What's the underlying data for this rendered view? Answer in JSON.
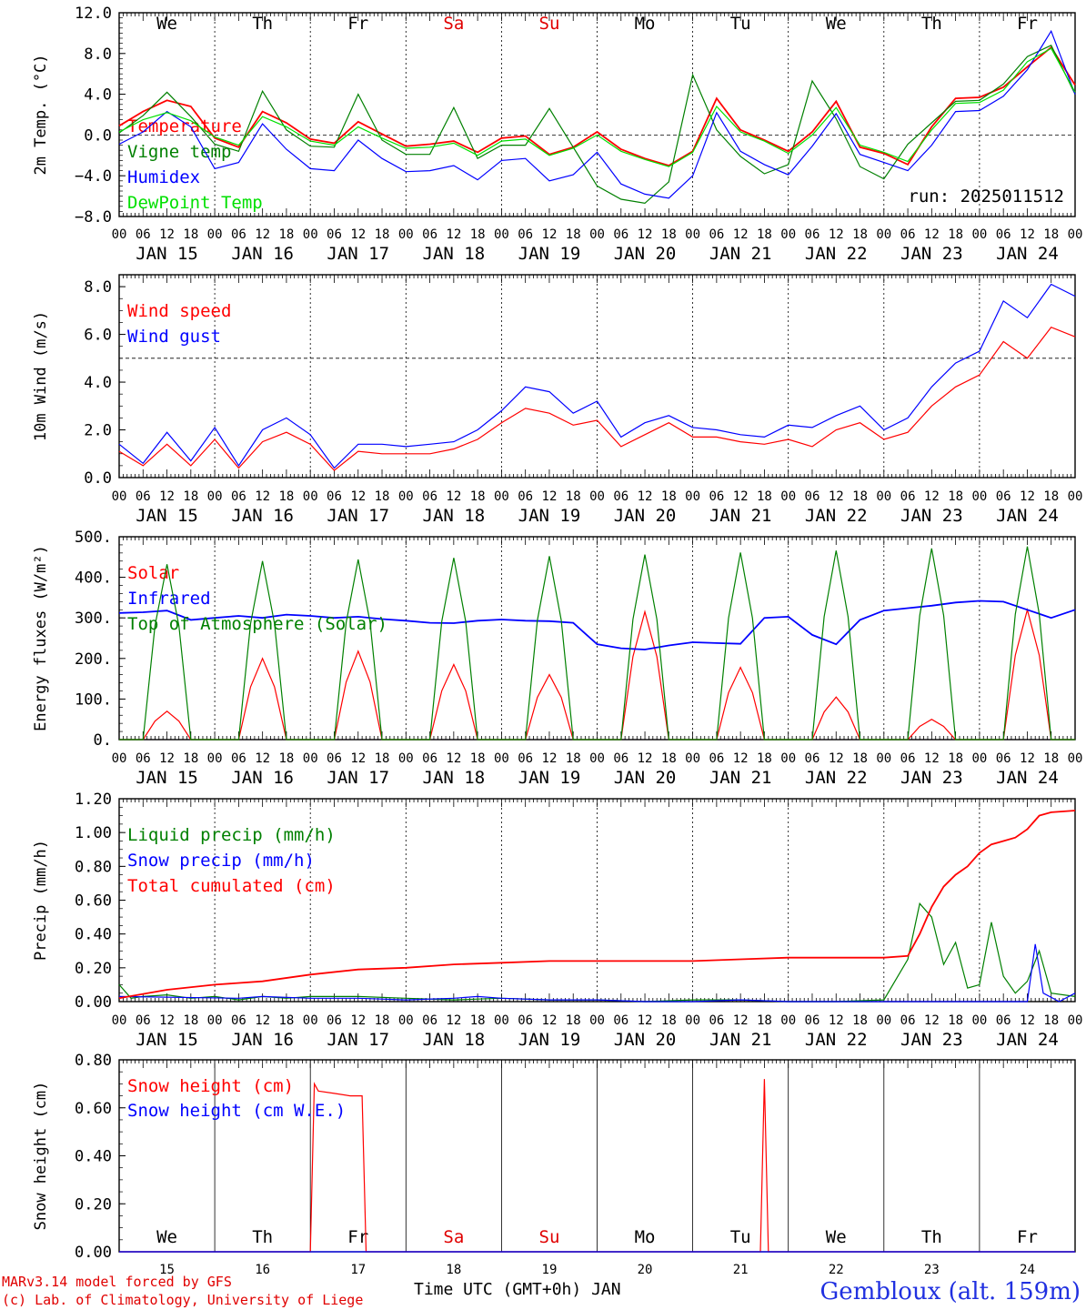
{
  "colors": {
    "red": "#ff0000",
    "green": "#008000",
    "blue": "#0000ff",
    "lime": "#00e000",
    "black": "#000000"
  },
  "footer": {
    "model": "MARv3.14 model forced by GFS",
    "credit": "(c) Lab. of Climatology, University of Liege",
    "x_title": "Time UTC (GMT+0h) JAN",
    "location": "Gembloux (alt. 159m)"
  },
  "chart_data": [
    {
      "type": "line",
      "ylabel": "2m Temp. (°C)",
      "ylim": [
        -8,
        12
      ],
      "yticks": [
        "12.0",
        "8.0",
        "4.0",
        "0.0",
        "−4.0",
        "−8.0"
      ],
      "reference_line": 0,
      "x_unit": "hours from 2025-01-15 00 UTC",
      "day_names": [
        "We",
        "Th",
        "Fr",
        "Sa",
        "Su",
        "Mo",
        "Tu",
        "We",
        "Th",
        "Fr"
      ],
      "date_labels": [
        "JAN 15",
        "JAN 16",
        "JAN 17",
        "JAN 18",
        "JAN 19",
        "JAN 20",
        "JAN 21",
        "JAN 22",
        "JAN 23",
        "JAN 24"
      ],
      "annotation": "run: 2025011512",
      "series": [
        {
          "name": "Temperature",
          "color": "red",
          "x": [
            0,
            6,
            12,
            18,
            24,
            30,
            36,
            42,
            48,
            54,
            60,
            66,
            72,
            78,
            84,
            90,
            96,
            102,
            108,
            114,
            120,
            126,
            132,
            138,
            144,
            150,
            156,
            162,
            168,
            174,
            180,
            186,
            192,
            198,
            204,
            210,
            216,
            222,
            228,
            234,
            240
          ],
          "y": [
            0.9,
            2.3,
            3.4,
            2.8,
            -0.3,
            -1.2,
            2.3,
            1.2,
            -0.4,
            -0.8,
            1.3,
            0.1,
            -1.1,
            -0.9,
            -0.6,
            -1.7,
            -0.3,
            -0.1,
            -1.9,
            -1.2,
            0.3,
            -1.4,
            -2.3,
            -3.0,
            -1.6,
            3.6,
            0.5,
            -0.5,
            -1.6,
            0.3,
            3.3,
            -1.2,
            -1.8,
            -2.9,
            0.8,
            3.6,
            3.7,
            4.7,
            6.7,
            8.6,
            4.9
          ]
        },
        {
          "name": "Vigne temp",
          "color": "green",
          "x": [
            0,
            6,
            12,
            18,
            24,
            30,
            36,
            42,
            48,
            54,
            60,
            66,
            72,
            78,
            84,
            90,
            96,
            102,
            108,
            114,
            120,
            126,
            132,
            138,
            144,
            150,
            156,
            162,
            168,
            174,
            180,
            186,
            192,
            198,
            204,
            210,
            216,
            222,
            228,
            234,
            240
          ],
          "y": [
            0.2,
            1.9,
            4.2,
            1.8,
            -0.9,
            -1.6,
            4.3,
            0.5,
            -1.1,
            -1.2,
            4.0,
            -0.5,
            -1.9,
            -1.9,
            2.7,
            -2.3,
            -1.0,
            -1.0,
            2.6,
            -1.2,
            -5.0,
            -6.3,
            -6.7,
            -4.6,
            5.9,
            0.5,
            -2.1,
            -3.8,
            -2.9,
            5.3,
            1.6,
            -3.1,
            -4.3,
            -0.9,
            1.2,
            3.3,
            3.4,
            5.0,
            7.7,
            8.8,
            4.0
          ]
        },
        {
          "name": "Humidex",
          "color": "blue",
          "x": [
            0,
            6,
            12,
            18,
            24,
            30,
            36,
            42,
            48,
            54,
            60,
            66,
            72,
            78,
            84,
            90,
            96,
            102,
            108,
            114,
            120,
            126,
            132,
            138,
            144,
            150,
            156,
            162,
            168,
            174,
            180,
            186,
            192,
            198,
            204,
            210,
            216,
            222,
            228,
            234,
            240
          ],
          "y": [
            -0.9,
            0.3,
            2.3,
            0.8,
            -3.3,
            -2.7,
            1.1,
            -1.4,
            -3.3,
            -3.5,
            -0.5,
            -2.3,
            -3.6,
            -3.5,
            -3.0,
            -4.4,
            -2.5,
            -2.3,
            -4.5,
            -3.9,
            -1.7,
            -4.8,
            -5.8,
            -6.2,
            -4.0,
            2.2,
            -1.6,
            -2.9,
            -3.9,
            -1.1,
            2.1,
            -1.9,
            -2.7,
            -3.5,
            -1.0,
            2.3,
            2.4,
            3.8,
            6.4,
            10.2,
            4.0
          ]
        },
        {
          "name": "DewPoint Temp",
          "color": "lime",
          "x": [
            0,
            6,
            12,
            18,
            24,
            30,
            36,
            42,
            48,
            54,
            60,
            66,
            72,
            78,
            84,
            90,
            96,
            102,
            108,
            114,
            120,
            126,
            132,
            138,
            144,
            150,
            156,
            162,
            168,
            174,
            180,
            186,
            192,
            198,
            204,
            210,
            216,
            222,
            228,
            234,
            240
          ],
          "y": [
            0.3,
            1.5,
            2.2,
            1.4,
            -0.2,
            -1.0,
            1.8,
            0.8,
            -0.6,
            -1.0,
            0.8,
            -0.3,
            -1.3,
            -1.2,
            -0.8,
            -2.0,
            -0.6,
            -0.4,
            -2.0,
            -1.3,
            0.0,
            -1.6,
            -2.4,
            -3.1,
            -1.7,
            2.8,
            0.3,
            -0.6,
            -1.8,
            0.0,
            2.7,
            -1.0,
            -1.7,
            -2.6,
            0.5,
            3.1,
            3.2,
            4.4,
            7.2,
            8.5,
            4.2
          ]
        }
      ]
    },
    {
      "type": "line",
      "ylabel": "10m Wind (m/s)",
      "ylim": [
        0,
        8.5
      ],
      "yticks": [
        "8.0",
        "6.0",
        "4.0",
        "2.0",
        "0.0"
      ],
      "reference_line": 5,
      "date_labels": [
        "JAN 15",
        "JAN 16",
        "JAN 17",
        "JAN 18",
        "JAN 19",
        "JAN 20",
        "JAN 21",
        "JAN 22",
        "JAN 23",
        "JAN 24"
      ],
      "series": [
        {
          "name": "Wind speed",
          "color": "red",
          "x": [
            0,
            6,
            12,
            18,
            24,
            30,
            36,
            42,
            48,
            54,
            60,
            66,
            72,
            78,
            84,
            90,
            96,
            102,
            108,
            114,
            120,
            126,
            132,
            138,
            144,
            150,
            156,
            162,
            168,
            174,
            180,
            186,
            192,
            198,
            204,
            210,
            216,
            222,
            228,
            234,
            240
          ],
          "y": [
            1.1,
            0.5,
            1.4,
            0.5,
            1.6,
            0.4,
            1.5,
            1.9,
            1.4,
            0.3,
            1.1,
            1.0,
            1.0,
            1.0,
            1.2,
            1.6,
            2.3,
            2.9,
            2.7,
            2.2,
            2.4,
            1.3,
            1.8,
            2.3,
            1.7,
            1.7,
            1.5,
            1.4,
            1.6,
            1.3,
            2.0,
            2.3,
            1.6,
            1.9,
            3.0,
            3.8,
            4.3,
            5.7,
            5.0,
            6.3,
            5.9
          ]
        },
        {
          "name": "Wind gust",
          "color": "blue",
          "x": [
            0,
            6,
            12,
            18,
            24,
            30,
            36,
            42,
            48,
            54,
            60,
            66,
            72,
            78,
            84,
            90,
            96,
            102,
            108,
            114,
            120,
            126,
            132,
            138,
            144,
            150,
            156,
            162,
            168,
            174,
            180,
            186,
            192,
            198,
            204,
            210,
            216,
            222,
            228,
            234,
            240
          ],
          "y": [
            1.4,
            0.6,
            1.9,
            0.7,
            2.1,
            0.5,
            2.0,
            2.5,
            1.8,
            0.4,
            1.4,
            1.4,
            1.3,
            1.4,
            1.5,
            2.0,
            2.8,
            3.8,
            3.6,
            2.7,
            3.2,
            1.7,
            2.3,
            2.6,
            2.1,
            2.0,
            1.8,
            1.7,
            2.2,
            2.1,
            2.6,
            3.0,
            2.0,
            2.5,
            3.8,
            4.8,
            5.3,
            7.4,
            6.7,
            8.1,
            7.6
          ]
        }
      ]
    },
    {
      "type": "line",
      "ylabel": "Energy fluxes (W/m²)",
      "ylim": [
        0,
        500
      ],
      "yticks": [
        "500.",
        "400.",
        "300.",
        "200.",
        "100.",
        "0."
      ],
      "date_labels": [
        "JAN 15",
        "JAN 16",
        "JAN 17",
        "JAN 18",
        "JAN 19",
        "JAN 20",
        "JAN 21",
        "JAN 22",
        "JAN 23",
        "JAN 24"
      ],
      "series": [
        {
          "name": "Solar",
          "color": "red",
          "peaks": [
            {
              "x": 12,
              "y": 70
            },
            {
              "x": 36,
              "y": 200
            },
            {
              "x": 60,
              "y": 218
            },
            {
              "x": 84,
              "y": 185
            },
            {
              "x": 108,
              "y": 160
            },
            {
              "x": 132,
              "y": 315
            },
            {
              "x": 156,
              "y": 178
            },
            {
              "x": 180,
              "y": 105
            },
            {
              "x": 204,
              "y": 50
            },
            {
              "x": 228,
              "y": 320
            }
          ]
        },
        {
          "name": "Infrared",
          "color": "blue",
          "x": [
            0,
            6,
            12,
            18,
            24,
            30,
            36,
            42,
            48,
            54,
            60,
            66,
            72,
            78,
            84,
            90,
            96,
            102,
            108,
            114,
            120,
            126,
            132,
            138,
            144,
            150,
            156,
            162,
            168,
            174,
            180,
            186,
            192,
            198,
            204,
            210,
            216,
            222,
            228,
            234,
            240
          ],
          "y": [
            312,
            314,
            318,
            295,
            300,
            305,
            300,
            308,
            305,
            300,
            303,
            297,
            293,
            288,
            287,
            293,
            296,
            293,
            292,
            288,
            235,
            225,
            222,
            232,
            240,
            238,
            236,
            300,
            303,
            258,
            235,
            295,
            318,
            324,
            330,
            338,
            342,
            340,
            320,
            300,
            320
          ]
        },
        {
          "name": "Top of Atmosphere (Solar)",
          "color": "green",
          "peaks": [
            {
              "x": 12,
              "y": 432
            },
            {
              "x": 36,
              "y": 440
            },
            {
              "x": 60,
              "y": 444
            },
            {
              "x": 84,
              "y": 448
            },
            {
              "x": 108,
              "y": 452
            },
            {
              "x": 132,
              "y": 456
            },
            {
              "x": 156,
              "y": 461
            },
            {
              "x": 180,
              "y": 466
            },
            {
              "x": 204,
              "y": 471
            },
            {
              "x": 228,
              "y": 476
            }
          ]
        }
      ]
    },
    {
      "type": "line",
      "ylabel": "Precip (mm/h)",
      "ylim": [
        0,
        1.2
      ],
      "yticks": [
        "1.20",
        "1.00",
        "0.80",
        "0.60",
        "0.40",
        "0.20",
        "0.00"
      ],
      "date_labels": [
        "JAN 15",
        "JAN 16",
        "JAN 17",
        "JAN 18",
        "JAN 19",
        "JAN 20",
        "JAN 21",
        "JAN 22",
        "JAN 23",
        "JAN 24"
      ],
      "series": [
        {
          "name": "Liquid precip (mm/h)",
          "color": "green",
          "x": [
            0,
            3,
            6,
            12,
            18,
            24,
            30,
            36,
            42,
            48,
            60,
            72,
            84,
            96,
            108,
            120,
            132,
            144,
            156,
            168,
            180,
            192,
            198,
            201,
            204,
            207,
            210,
            213,
            216,
            219,
            222,
            225,
            228,
            231,
            234,
            240
          ],
          "y": [
            0.1,
            0.02,
            0.03,
            0.04,
            0.02,
            0.03,
            0.01,
            0.03,
            0.02,
            0.03,
            0.03,
            0.02,
            0.01,
            0.02,
            0.01,
            0.01,
            0.0,
            0.01,
            0.01,
            0.0,
            0.0,
            0.01,
            0.25,
            0.58,
            0.5,
            0.22,
            0.35,
            0.08,
            0.1,
            0.47,
            0.15,
            0.05,
            0.12,
            0.3,
            0.05,
            0.03
          ]
        },
        {
          "name": "Snow precip (mm/h)",
          "color": "blue",
          "x": [
            0,
            30,
            36,
            48,
            60,
            72,
            84,
            90,
            96,
            108,
            120,
            132,
            144,
            156,
            168,
            180,
            192,
            204,
            216,
            228,
            230,
            232,
            236,
            240
          ],
          "y": [
            0.03,
            0.02,
            0.03,
            0.02,
            0.02,
            0.01,
            0.02,
            0.03,
            0.02,
            0.01,
            0.01,
            0.0,
            0.0,
            0.01,
            0.0,
            0.0,
            0.0,
            0.0,
            0.0,
            0.0,
            0.34,
            0.05,
            0.0,
            0.05
          ]
        },
        {
          "name": "Total cumulated (cm)",
          "color": "red",
          "x": [
            0,
            12,
            24,
            36,
            48,
            60,
            72,
            84,
            96,
            108,
            120,
            132,
            144,
            156,
            168,
            180,
            192,
            198,
            201,
            204,
            207,
            210,
            213,
            216,
            219,
            222,
            225,
            228,
            231,
            234,
            240
          ],
          "y": [
            0.02,
            0.07,
            0.1,
            0.12,
            0.16,
            0.19,
            0.2,
            0.22,
            0.23,
            0.24,
            0.24,
            0.24,
            0.24,
            0.25,
            0.26,
            0.26,
            0.26,
            0.27,
            0.4,
            0.56,
            0.68,
            0.75,
            0.8,
            0.88,
            0.93,
            0.95,
            0.97,
            1.02,
            1.1,
            1.12,
            1.13
          ]
        }
      ]
    },
    {
      "type": "line",
      "ylabel": "Snow height (cm)",
      "ylim": [
        0,
        0.8
      ],
      "yticks": [
        "0.80",
        "0.60",
        "0.40",
        "0.20",
        "0.00"
      ],
      "day_names": [
        "We",
        "Th",
        "Fr",
        "Sa",
        "Su",
        "Mo",
        "Tu",
        "We",
        "Th",
        "Fr"
      ],
      "date_labels": [
        "15",
        "16",
        "17",
        "18",
        "19",
        "20",
        "21",
        "22",
        "23",
        "24"
      ],
      "series": [
        {
          "name": "Snow height (cm)",
          "color": "red",
          "x": [
            0,
            48,
            49,
            50,
            54,
            58,
            61,
            62,
            160,
            161,
            162,
            163,
            164,
            240
          ],
          "y": [
            0,
            0,
            0.7,
            0.67,
            0.66,
            0.65,
            0.65,
            0,
            0,
            0,
            0.72,
            0,
            0,
            0
          ]
        },
        {
          "name": "Snow height (cm W.E.)",
          "color": "blue",
          "x": [
            0,
            240
          ],
          "y": [
            0,
            0
          ]
        }
      ]
    }
  ]
}
